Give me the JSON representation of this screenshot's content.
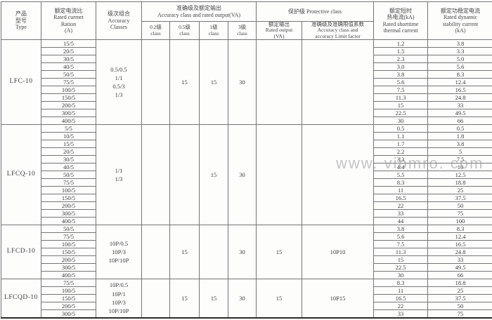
{
  "watermark_text": "www. vibmro. com",
  "colors": {
    "border": "#757575",
    "outer_border": "#2a2a2a",
    "text": "#3c3c3c",
    "watermark": "#969696",
    "background": "#fdfdfc"
  },
  "header": {
    "type": "产品\n型号\nType",
    "ratio": "额定电流比\nRated curmet\nRation\n(A)",
    "classes": "级次组合\nAccuracy\nClasses",
    "output_group": "准确级及额定输出\nAccuracy class and rated output(VA)",
    "c02": "0.2级\nclass",
    "c05": "0.5级\nclass",
    "c1": "1级\nclass",
    "c3": "3级\nclass",
    "protective_group": "保护级  Protective class",
    "rated_output": "额定输出\nRated output\n(VA)",
    "limit_factor": "准确级及准确限值系数\nAccuracy class and\naccuracy Limit factor",
    "thermal": "额定短时\n热电流(kA)\nRated shorttime\nthermal current",
    "dynamic": "额定功稳定电流\nRated dynamic\nstability current\n(kA)"
  },
  "sections": [
    {
      "type": "LFC-10",
      "accuracy_classes": "0.5/0.5\n1/1\n0.5/3\n1/3",
      "outputs": {
        "c02": "",
        "c05": "15",
        "c1": "15",
        "c3": "30"
      },
      "protective": {
        "rated_output": "",
        "limit_factor": ""
      },
      "ratios": [
        "15/5",
        "20/5",
        "30/5",
        "40/5",
        "50/5",
        "75/5",
        "100/5",
        "150/5",
        "200/5",
        "300/5",
        "400/5"
      ],
      "thermal": [
        "1.2",
        "1.5",
        "2.3",
        "3.0",
        "3.8",
        "5.6",
        "7.5",
        "11.3",
        "15",
        "22.5",
        "30"
      ],
      "dynamic": [
        "3.8",
        "3.3",
        "5.0",
        "5.6",
        "8.3",
        "12.4",
        "16.5",
        "24.8",
        "33",
        "49.5",
        "66"
      ]
    },
    {
      "type": "LFCQ-10",
      "accuracy_classes": "1/1\n1/3",
      "outputs": {
        "c02": "",
        "c05": "",
        "c1": "15",
        "c3": "30"
      },
      "protective": {
        "rated_output": "",
        "limit_factor": ""
      },
      "ratios": [
        "5/5",
        "10/5",
        "15/5",
        "20/5",
        "30/5",
        "40/5",
        "50/5",
        "75/5",
        "100/5",
        "150/5",
        "200/5",
        "300/5",
        "400/5"
      ],
      "thermal": [
        "0.5",
        "1.1",
        "1.7",
        "2.2",
        "3.3",
        "4.4",
        "5.5",
        "8.3",
        "11",
        "16.5",
        "22",
        "33",
        "44"
      ],
      "dynamic": [
        "0.5",
        "1.8",
        "3.8",
        "5",
        "7.5",
        "10",
        "12.5",
        "18.8",
        "25",
        "37.5",
        "50",
        "75",
        "100"
      ]
    },
    {
      "type": "LFCD-10",
      "accuracy_classes": "10P/0.5\n10P/3\n10P/10P",
      "outputs": {
        "c02": "",
        "c05": "15",
        "c1": "",
        "c3": "30"
      },
      "protective": {
        "rated_output": "15",
        "limit_factor": "10P10"
      },
      "ratios": [
        "50/5",
        "75/5",
        "100/5",
        "150/5",
        "200/5",
        "300/5",
        "400/5"
      ],
      "thermal": [
        "3.8",
        "5.6",
        "7.5",
        "11.3",
        "15",
        "22.5",
        "30"
      ],
      "dynamic": [
        "8.3",
        "12.4",
        "16.5",
        "24.8",
        "33",
        "49.5",
        "66"
      ]
    },
    {
      "type": "LFCQD-10",
      "accuracy_classes": "10P/0.5\n10P/1\n10P/3\n10P/10P",
      "outputs": {
        "c02": "",
        "c05": "15",
        "c1": "15",
        "c3": "30"
      },
      "protective": {
        "rated_output": "15",
        "limit_factor": "10P15"
      },
      "ratios": [
        "75/5",
        "100/5",
        "150/5",
        "200/5",
        "300/5"
      ],
      "thermal": [
        "8.3",
        "11",
        "16.5",
        "22",
        "33"
      ],
      "dynamic": [
        "18.8",
        "25",
        "37.5",
        "50",
        "75"
      ]
    }
  ]
}
